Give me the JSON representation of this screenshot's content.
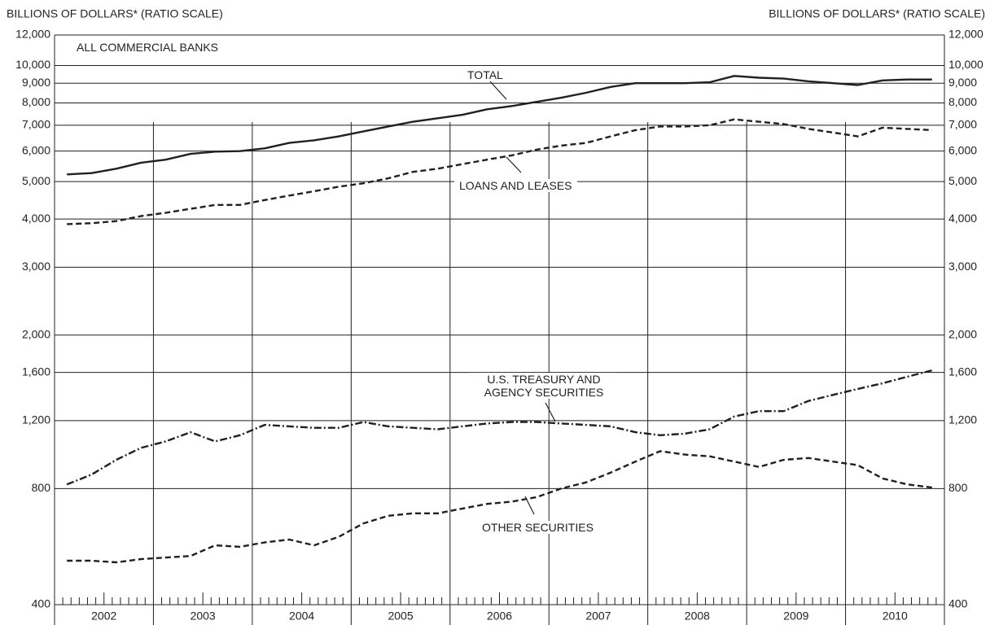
{
  "chart_data": {
    "type": "line",
    "title": "ALL COMMERCIAL BANKS",
    "ylabel": "BILLIONS OF DOLLARS* (RATIO SCALE)",
    "log_scale": true,
    "grid": true,
    "ylim": [
      400,
      12000
    ],
    "yticks": [
      400,
      800,
      {
        "value": 1200,
        "label": "1,200"
      },
      {
        "value": 1600,
        "label": "1,600"
      },
      {
        "value": 2000,
        "label": "2,000"
      },
      {
        "value": 3000,
        "label": "3,000"
      },
      {
        "value": 4000,
        "label": "4,000"
      },
      {
        "value": 5000,
        "label": "5,000"
      },
      {
        "value": 6000,
        "label": "6,000"
      },
      {
        "value": 7000,
        "label": "7,000"
      },
      {
        "value": 8000,
        "label": "8,000"
      },
      {
        "value": 9000,
        "label": "9,000"
      },
      {
        "value": 10000,
        "label": "10,000"
      },
      {
        "value": 12000,
        "label": "12,000"
      }
    ],
    "xlim": [
      2002,
      2011
    ],
    "xticks": [
      2002,
      2003,
      2004,
      2005,
      2006,
      2007,
      2008,
      2009,
      2010,
      2011
    ],
    "year_labels": [
      "2002",
      "2003",
      "2004",
      "2005",
      "2006",
      "2007",
      "2008",
      "2009",
      "2010"
    ],
    "x": [
      2002.125,
      2002.375,
      2002.625,
      2002.875,
      2003.125,
      2003.375,
      2003.625,
      2003.875,
      2004.125,
      2004.375,
      2004.625,
      2004.875,
      2005.125,
      2005.375,
      2005.625,
      2005.875,
      2006.125,
      2006.375,
      2006.625,
      2006.875,
      2007.125,
      2007.375,
      2007.625,
      2007.875,
      2008.125,
      2008.375,
      2008.625,
      2008.875,
      2009.125,
      2009.375,
      2009.625,
      2009.875,
      2010.125,
      2010.375,
      2010.625,
      2010.875
    ],
    "series": [
      {
        "name": "TOTAL",
        "color": "#231f20",
        "dash": "none",
        "values": [
          5220,
          5260,
          5400,
          5600,
          5700,
          5900,
          5980,
          6000,
          6100,
          6300,
          6400,
          6550,
          6750,
          6950,
          7150,
          7300,
          7450,
          7700,
          7850,
          8050,
          8250,
          8500,
          8800,
          9000,
          9000,
          9000,
          9050,
          9400,
          9300,
          9250,
          9100,
          9000,
          8900,
          9150,
          9200,
          9200
        ]
      },
      {
        "name": "LOANS AND LEASES",
        "color": "#231f20",
        "dash": "7 4",
        "values": [
          3880,
          3900,
          3950,
          4070,
          4150,
          4250,
          4350,
          4350,
          4480,
          4600,
          4720,
          4850,
          4950,
          5100,
          5300,
          5400,
          5550,
          5700,
          5850,
          6050,
          6200,
          6300,
          6550,
          6800,
          6950,
          6950,
          7000,
          7250,
          7150,
          7050,
          6850,
          6700,
          6550,
          6900,
          6850,
          6800
        ]
      },
      {
        "name": "U.S. TREASURY AND AGENCY SECURITIES",
        "color": "#231f20",
        "dash": "9 3 2 3",
        "values": [
          820,
          870,
          950,
          1020,
          1060,
          1120,
          1060,
          1100,
          1170,
          1160,
          1150,
          1150,
          1190,
          1160,
          1150,
          1140,
          1160,
          1180,
          1190,
          1190,
          1180,
          1170,
          1160,
          1120,
          1100,
          1110,
          1140,
          1230,
          1270,
          1270,
          1350,
          1400,
          1450,
          1500,
          1560,
          1620
        ]
      },
      {
        "name": "OTHER SECURITIES",
        "color": "#231f20",
        "dash": "7 4",
        "values": [
          520,
          520,
          515,
          525,
          530,
          535,
          570,
          565,
          580,
          590,
          570,
          600,
          650,
          680,
          690,
          690,
          710,
          730,
          740,
          760,
          800,
          830,
          880,
          940,
          1000,
          980,
          970,
          940,
          910,
          950,
          960,
          940,
          920,
          850,
          820,
          805
        ]
      }
    ]
  }
}
